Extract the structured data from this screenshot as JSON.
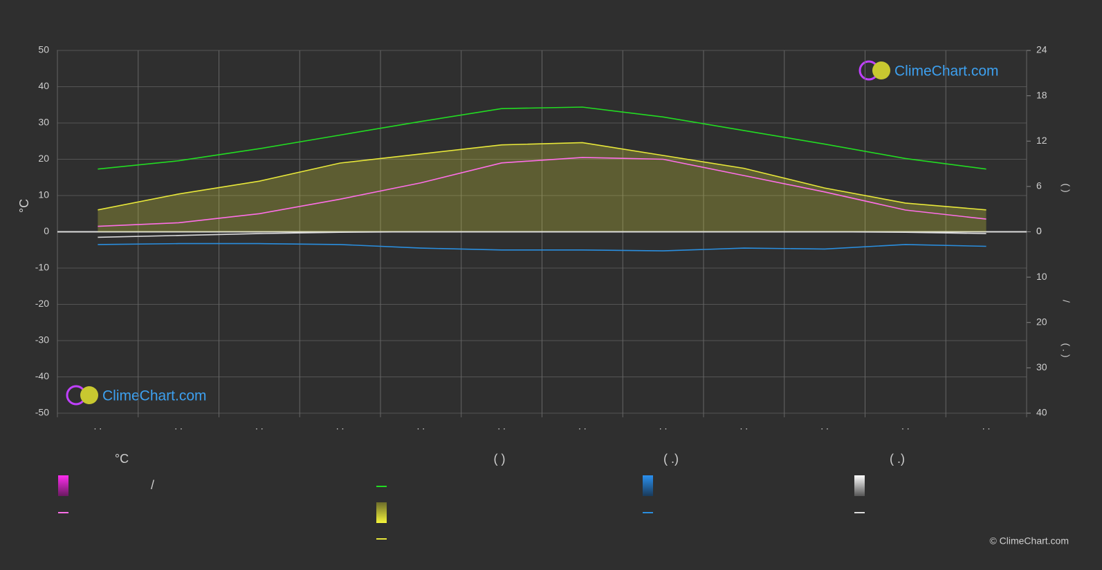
{
  "chart_data": {
    "type": "line",
    "y_label": "°C",
    "y2_label": "(      )",
    "y3_label_a": "/",
    "y3_label_b": "(   .   )",
    "categories": [
      ". .",
      ". .",
      ". .",
      ". .",
      ". .",
      ". .",
      ". .",
      ". .",
      ". .",
      ". .",
      ". .",
      ". ."
    ],
    "ylim": [
      -50,
      50
    ],
    "yticks": [
      -50,
      -40,
      -30,
      -20,
      -10,
      0,
      10,
      20,
      30,
      40,
      50
    ],
    "y2lim": [
      0,
      24
    ],
    "y2ticks": [
      0,
      6,
      12,
      18,
      24
    ],
    "y3lim": [
      0,
      40
    ],
    "y3ticks": [
      0,
      10,
      20,
      30,
      40
    ],
    "grid": true,
    "series": [
      {
        "color": "#22dd22",
        "axis": "y2",
        "values": [
          8.3,
          9.4,
          11.0,
          12.8,
          14.6,
          16.3,
          16.5,
          15.2,
          13.4,
          11.6,
          9.7,
          8.3
        ]
      },
      {
        "color": "#e8e83a",
        "axis": "y2",
        "area": true,
        "values": [
          2.9,
          5.0,
          6.7,
          9.1,
          10.3,
          11.5,
          11.8,
          10.1,
          8.4,
          5.8,
          3.8,
          2.9
        ]
      },
      {
        "color": "#ff6fe8",
        "axis": "y",
        "values": [
          1.5,
          2.5,
          5,
          9,
          13.5,
          19,
          20.5,
          20,
          15.5,
          11,
          6,
          3.5
        ]
      },
      {
        "color": "#2a8fe0",
        "axis": "y3",
        "values": [
          2.8,
          2.6,
          2.6,
          2.8,
          3.6,
          4.0,
          4.0,
          4.2,
          3.6,
          3.8,
          2.8,
          3.2
        ]
      },
      {
        "color": "#dddddd",
        "axis": "y3",
        "values": [
          1.2,
          0.8,
          0.4,
          0.1,
          0,
          0,
          0,
          0,
          0,
          0,
          0.1,
          0.4
        ]
      }
    ],
    "legend": {
      "temp_heading": "°C",
      "temp_sep": "/",
      "sun_heading": "(          )",
      "rain_heading": "(   .)",
      "snow_heading": "(   .)"
    },
    "logo": "ClimeChart.com",
    "copyright": "© ClimeChart.com"
  }
}
